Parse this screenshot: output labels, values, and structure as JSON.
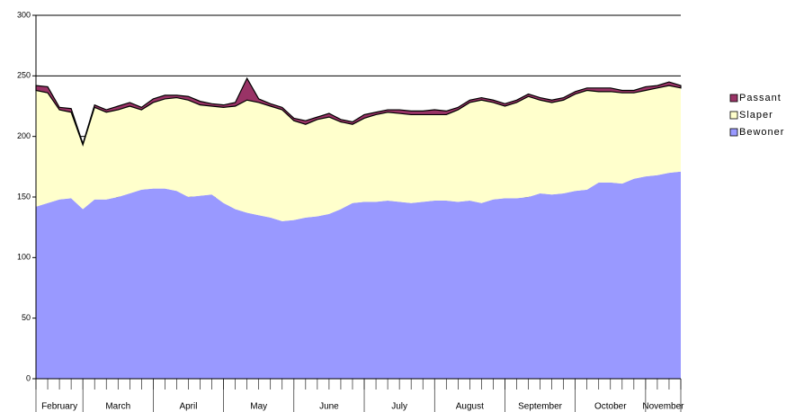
{
  "chart_data": {
    "type": "stacked-area",
    "categories": [
      "February",
      null,
      null,
      null,
      "March",
      null,
      null,
      null,
      null,
      null,
      "April",
      null,
      null,
      null,
      null,
      null,
      "May",
      null,
      null,
      null,
      null,
      null,
      "June",
      null,
      null,
      null,
      null,
      null,
      "July",
      null,
      null,
      null,
      null,
      null,
      "August",
      null,
      null,
      null,
      null,
      null,
      "September",
      null,
      null,
      null,
      null,
      null,
      "October",
      null,
      null,
      null,
      null,
      null,
      "November",
      null,
      null,
      null
    ],
    "series": [
      {
        "name": "Bewoner",
        "color": "#9999ff",
        "values": [
          142,
          145,
          148,
          149,
          140,
          148,
          148,
          150,
          153,
          156,
          157,
          157,
          155,
          150,
          151,
          152,
          145,
          140,
          137,
          135,
          133,
          130,
          131,
          133,
          134,
          136,
          140,
          145,
          146,
          146,
          147,
          146,
          145,
          146,
          147,
          147,
          146,
          147,
          145,
          148,
          149,
          149,
          150,
          153,
          152,
          153,
          155,
          156,
          162,
          162,
          161,
          165,
          167,
          168,
          170,
          171
        ]
      },
      {
        "name": "Slaper",
        "color": "#ffffcc",
        "values": [
          96,
          91,
          74,
          71,
          53,
          76,
          72,
          72,
          72,
          66,
          71,
          74,
          77,
          80,
          75,
          73,
          79,
          85,
          93,
          93,
          92,
          92,
          82,
          77,
          80,
          80,
          72,
          65,
          69,
          72,
          73,
          73,
          73,
          72,
          71,
          71,
          76,
          81,
          85,
          80,
          76,
          79,
          83,
          77,
          76,
          77,
          80,
          82,
          75,
          75,
          75,
          71,
          71,
          72,
          72,
          69
        ]
      },
      {
        "name": "Passant",
        "color": "#993366",
        "values": [
          4,
          5,
          2,
          3,
          1,
          2,
          2,
          3,
          3,
          2,
          3,
          3,
          2,
          3,
          3,
          2,
          2,
          3,
          18,
          3,
          2,
          2,
          2,
          3,
          2,
          3,
          2,
          2,
          3,
          2,
          2,
          3,
          3,
          3,
          4,
          3,
          2,
          2,
          2,
          2,
          2,
          2,
          2,
          2,
          2,
          2,
          2,
          2,
          3,
          3,
          2,
          2,
          3,
          2,
          3,
          2
        ]
      }
    ],
    "ylim": [
      0,
      300
    ],
    "yticks": [
      0,
      50,
      100,
      150,
      200,
      250,
      300
    ],
    "grid": true
  }
}
